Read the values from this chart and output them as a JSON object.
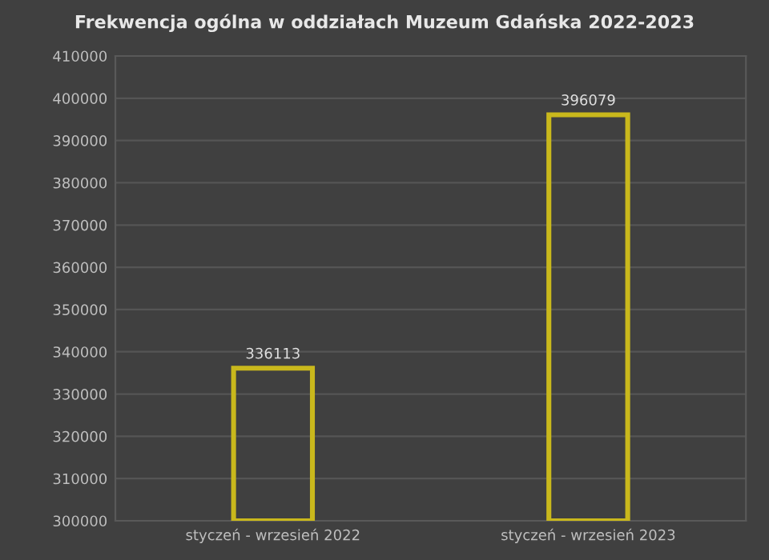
{
  "chart_data": {
    "type": "bar",
    "title": "Frekwencja ogólna w oddziałach Muzeum Gdańska 2022-2023",
    "categories": [
      "styczeń - wrzesień 2022",
      "styczeń - wrzesień 2023"
    ],
    "values": [
      336113,
      396079
    ],
    "color": "#c9b81c",
    "data_labels": true,
    "ylim": [
      300000,
      410000
    ],
    "yticks": [
      300000,
      310000,
      320000,
      330000,
      340000,
      350000,
      360000,
      370000,
      380000,
      390000,
      400000,
      410000
    ],
    "grid": "y"
  }
}
